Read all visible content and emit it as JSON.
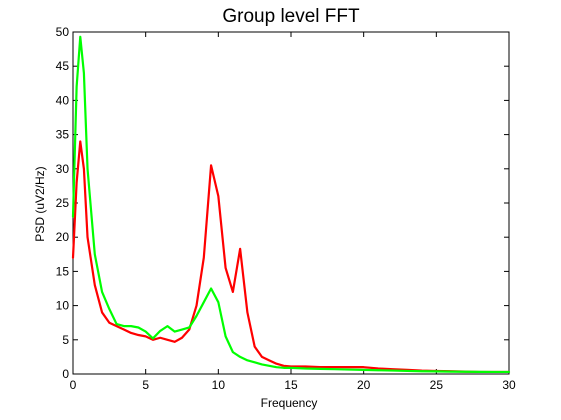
{
  "chart_data": {
    "type": "line",
    "title": "Group level FFT",
    "xlabel": "Frequency",
    "ylabel": "PSD  (uV2/Hz)",
    "xlim": [
      0,
      30
    ],
    "ylim": [
      0,
      50
    ],
    "xticks": [
      0,
      5,
      10,
      15,
      20,
      25,
      30
    ],
    "yticks": [
      0,
      5,
      10,
      15,
      20,
      25,
      30,
      35,
      40,
      45,
      50
    ],
    "grid": false,
    "legend": "none",
    "series": [
      {
        "color": "#ff0000",
        "x": [
          0,
          0.25,
          0.5,
          0.75,
          1.0,
          1.5,
          2.0,
          2.5,
          3.0,
          3.5,
          4.0,
          4.5,
          5.0,
          5.5,
          6.0,
          6.5,
          7.0,
          7.5,
          8.0,
          8.5,
          9.0,
          9.5,
          10.0,
          10.5,
          11.0,
          11.5,
          12.0,
          12.5,
          13.0,
          13.5,
          14.0,
          14.5,
          15.0,
          16.0,
          17.0,
          18.0,
          19.0,
          20.0,
          21.0,
          22.0,
          23.0,
          24.0,
          25.0,
          26.0,
          27.0,
          28.0,
          29.0,
          30.0
        ],
        "y": [
          17,
          28,
          34,
          30,
          20,
          13,
          9,
          7.5,
          7,
          6.5,
          6,
          5.7,
          5.5,
          5,
          5.3,
          5,
          4.7,
          5.3,
          6.5,
          10,
          17,
          30.5,
          26,
          15.5,
          12,
          18.3,
          9,
          4,
          2.5,
          2,
          1.5,
          1.2,
          1.1,
          1.1,
          1.0,
          1.0,
          1.0,
          1.0,
          0.8,
          0.7,
          0.6,
          0.5,
          0.45,
          0.4,
          0.35,
          0.3,
          0.3,
          0.3
        ]
      },
      {
        "color": "#00ff00",
        "x": [
          0,
          0.25,
          0.5,
          0.75,
          1.0,
          1.5,
          2.0,
          2.5,
          3.0,
          3.5,
          4.0,
          4.5,
          5.0,
          5.5,
          6.0,
          6.5,
          7.0,
          7.5,
          8.0,
          8.5,
          9.0,
          9.5,
          10.0,
          10.5,
          11.0,
          11.5,
          12.0,
          12.5,
          13.0,
          13.5,
          14.0,
          14.5,
          15.0,
          16.0,
          17.0,
          18.0,
          19.0,
          20.0,
          21.0,
          22.0,
          23.0,
          24.0,
          25.0,
          26.0,
          27.0,
          28.0,
          29.0,
          30.0
        ],
        "y": [
          23,
          42,
          49.3,
          44,
          30,
          17.5,
          12,
          9.5,
          7.3,
          7,
          7,
          6.8,
          6.2,
          5.2,
          6.3,
          7,
          6.2,
          6.5,
          6.8,
          8.5,
          10.5,
          12.5,
          10.5,
          5.5,
          3.2,
          2.5,
          2,
          1.7,
          1.4,
          1.2,
          1.0,
          0.9,
          0.9,
          0.8,
          0.75,
          0.7,
          0.65,
          0.6,
          0.55,
          0.5,
          0.45,
          0.4,
          0.38,
          0.35,
          0.33,
          0.31,
          0.3,
          0.3
        ]
      }
    ]
  }
}
